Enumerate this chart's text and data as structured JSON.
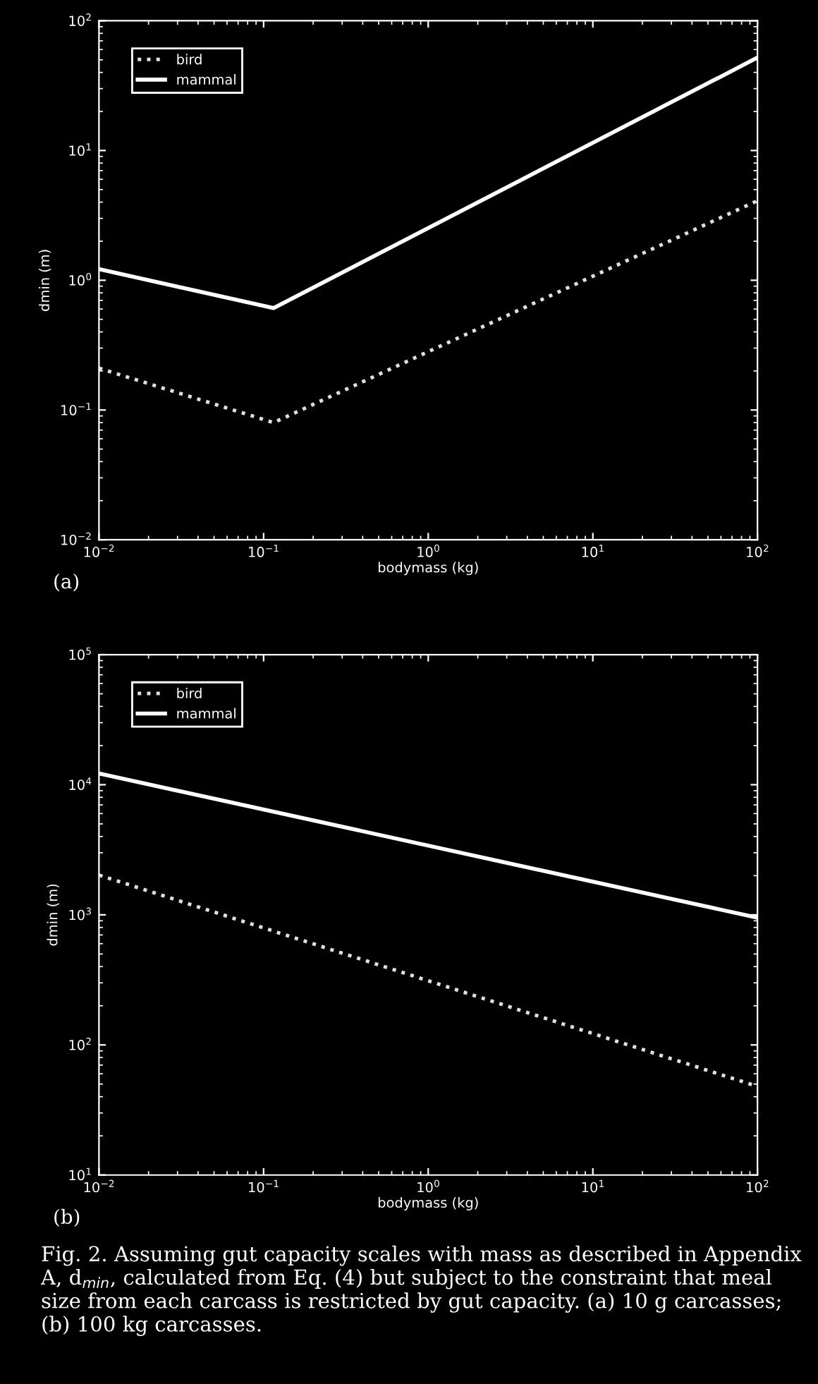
{
  "chart_data": [
    {
      "type": "line",
      "xlabel": "bodymass (kg)",
      "ylabel": "dmin (m)",
      "log": "xy",
      "legend": "top left",
      "grid": false,
      "xlim": [
        0.01,
        100
      ],
      "ylim": [
        0.01,
        100
      ],
      "xticks": [
        {
          "value": 0.01,
          "label": "10$^{−2}$"
        },
        {
          "value": 0.1,
          "label": "10$^{−1}$"
        },
        {
          "value": 1,
          "label": "10$^{0}$"
        },
        {
          "value": 10,
          "label": "10$^{1}$"
        },
        {
          "value": 100,
          "label": "10$^{2}$"
        }
      ],
      "yticks": [
        {
          "value": 0.01,
          "label": "10$^{−2}$"
        },
        {
          "value": 0.1,
          "label": "10$^{−1}$"
        },
        {
          "value": 1,
          "label": "10$^{0}$"
        },
        {
          "value": 10,
          "label": "10$^{1}$"
        },
        {
          "value": 100,
          "label": "10$^{2}$"
        }
      ],
      "series": [
        {
          "name": "bird",
          "color": "#e0e0e0",
          "line_style": "dotted",
          "x": [
            0.01,
            0.115,
            100
          ],
          "values": [
            0.21,
            0.08,
            4.1
          ]
        },
        {
          "name": "mammal",
          "color": "#ffffff",
          "line_style": "solid",
          "x": [
            0.01,
            0.115,
            100
          ],
          "values": [
            1.22,
            0.61,
            52
          ]
        }
      ],
      "annotations": [
        "(a)"
      ]
    },
    {
      "type": "line",
      "xlabel": "bodymass (kg)",
      "ylabel": "dmin (m)",
      "log": "xy",
      "legend": "top left",
      "grid": false,
      "xlim": [
        0.01,
        100
      ],
      "ylim": [
        10,
        100000
      ],
      "xticks": [
        {
          "value": 0.01,
          "label": "10$^{−2}$"
        },
        {
          "value": 0.1,
          "label": "10$^{−1}$"
        },
        {
          "value": 1,
          "label": "10$^{0}$"
        },
        {
          "value": 10,
          "label": "10$^{1}$"
        },
        {
          "value": 100,
          "label": "10$^{2}$"
        }
      ],
      "yticks": [
        {
          "value": 10,
          "label": "10$^{1}$"
        },
        {
          "value": 100,
          "label": "10$^{2}$"
        },
        {
          "value": 1000,
          "label": "10$^{3}$"
        },
        {
          "value": 10000,
          "label": "10$^{4}$"
        },
        {
          "value": 100000,
          "label": "10$^{5}$"
        }
      ],
      "series": [
        {
          "name": "bird",
          "color": "#e0e0e0",
          "line_style": "dotted",
          "x": [
            0.01,
            100
          ],
          "values": [
            2020,
            48
          ]
        },
        {
          "name": "mammal",
          "color": "#ffffff",
          "line_style": "solid",
          "x": [
            0.01,
            100
          ],
          "values": [
            12200,
            950
          ]
        }
      ],
      "annotations": [
        "(b)",
        "Fig. 2. Assuming gut capacity scales with mass as described in Appendix A, d$_{min}$, calculated from Eq. (4) but subject to the constraint that meal size from each carcass is restricted by gut capacity. (a) 10 g carcasses; (b) 100 kg carcasses."
      ]
    }
  ]
}
